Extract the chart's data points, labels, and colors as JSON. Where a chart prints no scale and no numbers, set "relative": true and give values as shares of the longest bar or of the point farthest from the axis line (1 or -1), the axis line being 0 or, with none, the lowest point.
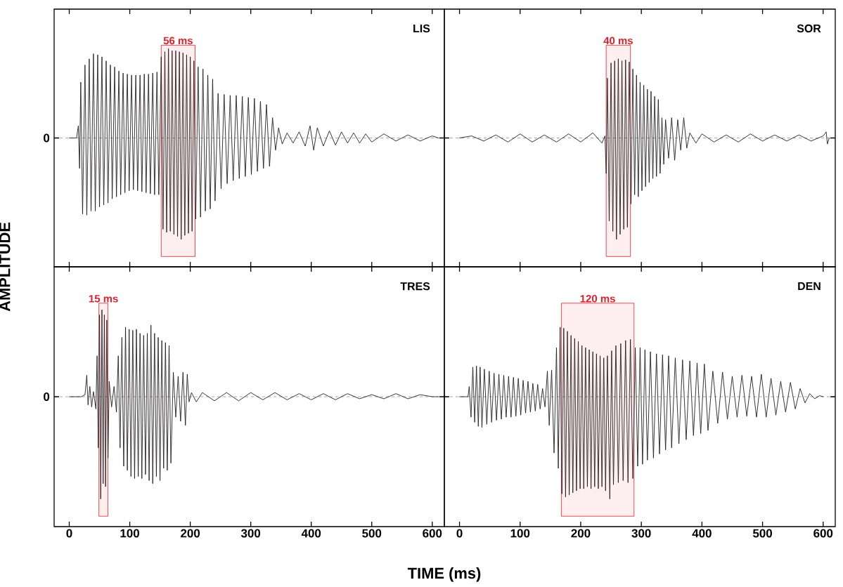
{
  "chart_data": [
    {
      "type": "line",
      "title": "LIS",
      "ylabel": "AMPLITUDE",
      "relative": true,
      "color": "#231f20",
      "xlim": [
        -25,
        620
      ],
      "xticks": [
        0,
        100,
        200,
        300,
        400,
        500,
        600
      ],
      "tick_labels": false,
      "ref_lines": [
        {
          "axis": "y",
          "value": 0,
          "label": "0",
          "line_style": "dashed"
        }
      ],
      "bands": [
        {
          "axis": "x",
          "from": 152,
          "to": 208,
          "label": "56 ms",
          "color": "#e0202a"
        }
      ],
      "x": [
        0,
        12,
        15,
        17,
        19,
        22,
        26,
        29,
        33,
        36,
        40,
        43,
        47,
        50,
        54,
        57,
        61,
        64,
        68,
        71,
        75,
        78,
        82,
        85,
        89,
        92,
        96,
        99,
        103,
        106,
        110,
        113,
        117,
        120,
        124,
        127,
        131,
        134,
        138,
        141,
        145,
        148,
        152,
        155,
        158,
        161,
        164,
        167,
        170,
        173,
        176,
        179,
        182,
        185,
        188,
        191,
        194,
        197,
        200,
        203,
        206,
        209,
        213,
        217,
        221,
        225,
        229,
        233,
        237,
        241,
        246,
        251,
        256,
        261,
        266,
        271,
        276,
        281,
        286,
        291,
        296,
        301,
        306,
        311,
        316,
        321,
        326,
        331,
        336,
        341,
        346,
        352,
        360,
        370,
        380,
        390,
        398,
        404,
        410,
        420,
        430,
        440,
        450,
        460,
        470,
        480,
        490,
        500,
        520,
        540,
        560,
        580,
        600,
        610
      ],
      "values": [
        0,
        0,
        0.12,
        -0.3,
        0.55,
        -0.75,
        0.72,
        -0.76,
        0.78,
        -0.72,
        0.83,
        -0.72,
        0.82,
        -0.68,
        0.8,
        -0.66,
        0.76,
        -0.64,
        0.72,
        -0.6,
        0.7,
        -0.58,
        0.66,
        -0.56,
        0.64,
        -0.54,
        0.63,
        -0.52,
        0.62,
        -0.51,
        0.62,
        -0.52,
        0.62,
        -0.53,
        0.63,
        -0.54,
        0.63,
        -0.55,
        0.64,
        -0.56,
        0.65,
        -0.56,
        0.8,
        -0.9,
        0.85,
        -0.93,
        0.88,
        -0.92,
        0.86,
        -0.95,
        0.86,
        -0.97,
        0.85,
        -1,
        0.84,
        -0.96,
        0.82,
        -0.94,
        0.8,
        -0.92,
        0.76,
        -0.8,
        0.7,
        -0.78,
        0.68,
        -0.72,
        0.62,
        -0.7,
        0.58,
        -0.62,
        0.44,
        -0.5,
        0.43,
        -0.45,
        0.42,
        -0.42,
        0.42,
        -0.4,
        0.41,
        -0.38,
        0.4,
        -0.36,
        0.39,
        -0.33,
        0.36,
        -0.3,
        0.33,
        -0.28,
        0.2,
        -0.12,
        0.1,
        -0.06,
        0.05,
        -0.05,
        0.06,
        -0.08,
        0.12,
        -0.12,
        0.1,
        -0.08,
        0.07,
        -0.07,
        0.06,
        -0.05,
        0.05,
        -0.05,
        0.04,
        -0.04,
        0.04,
        -0.03,
        0.03,
        -0.03,
        0.02,
        0
      ]
    },
    {
      "type": "line",
      "title": "SOR",
      "relative": true,
      "color": "#231f20",
      "xlim": [
        -25,
        620
      ],
      "xticks": [
        0,
        100,
        200,
        300,
        400,
        500,
        600
      ],
      "tick_labels": false,
      "ref_lines": [
        {
          "axis": "y",
          "value": 0,
          "line_style": "dashed"
        }
      ],
      "bands": [
        {
          "axis": "x",
          "from": 242,
          "to": 282,
          "label": "40 ms",
          "color": "#e0202a"
        }
      ],
      "x": [
        0,
        20,
        40,
        60,
        80,
        100,
        120,
        140,
        160,
        180,
        200,
        220,
        235,
        240,
        242,
        244,
        247,
        250,
        253,
        256,
        259,
        262,
        265,
        268,
        271,
        274,
        277,
        280,
        283,
        286,
        289,
        292,
        295,
        298,
        301,
        304,
        307,
        310,
        313,
        316,
        319,
        322,
        325,
        328,
        331,
        334,
        337,
        340,
        345,
        350,
        355,
        360,
        365,
        370,
        375,
        380,
        390,
        400,
        420,
        440,
        460,
        480,
        500,
        520,
        540,
        560,
        580,
        600,
        605,
        607,
        610
      ],
      "values": [
        0,
        0.02,
        -0.03,
        0.03,
        -0.04,
        0.04,
        -0.04,
        0.03,
        -0.04,
        0.04,
        -0.04,
        0.05,
        -0.05,
        0.02,
        -0.35,
        0.59,
        -0.82,
        0.74,
        -0.92,
        0.76,
        -1,
        0.78,
        -0.95,
        0.76,
        -0.9,
        0.77,
        -0.88,
        0.75,
        -0.65,
        0.68,
        -0.56,
        0.62,
        -0.58,
        0.55,
        -0.52,
        0.52,
        -0.48,
        0.48,
        -0.44,
        0.46,
        -0.4,
        0.41,
        -0.38,
        0.38,
        -0.35,
        0.2,
        -0.26,
        0.18,
        -0.2,
        0.2,
        -0.22,
        0.18,
        -0.12,
        0.2,
        -0.1,
        0.05,
        -0.05,
        0.04,
        -0.04,
        0.03,
        -0.04,
        0.04,
        -0.03,
        0.03,
        -0.03,
        0.03,
        -0.03,
        0.02,
        0.06,
        -0.06,
        0
      ]
    },
    {
      "type": "line",
      "title": "TRES",
      "xlabel": "TIME (ms)",
      "relative": true,
      "color": "#231f20",
      "xlim": [
        -25,
        620
      ],
      "xticks": [
        0,
        100,
        200,
        300,
        400,
        500,
        600
      ],
      "ref_lines": [
        {
          "axis": "y",
          "value": 0,
          "label": "0",
          "line_style": "dashed"
        }
      ],
      "bands": [
        {
          "axis": "x",
          "from": 49,
          "to": 64,
          "label": "15 ms",
          "color": "#e0202a"
        }
      ],
      "x": [
        0,
        20,
        26,
        29,
        31,
        34,
        37,
        40,
        44,
        46,
        48,
        50,
        52,
        54,
        56,
        58,
        60,
        62,
        64,
        66,
        70,
        74,
        78,
        81,
        84,
        87,
        90,
        93,
        96,
        99,
        102,
        105,
        108,
        111,
        114,
        117,
        120,
        123,
        126,
        129,
        132,
        135,
        138,
        141,
        144,
        147,
        150,
        153,
        156,
        159,
        162,
        165,
        168,
        172,
        176,
        180,
        184,
        188,
        192,
        195,
        198,
        202,
        210,
        220,
        240,
        260,
        280,
        300,
        320,
        340,
        360,
        380,
        400,
        420,
        440,
        460,
        480,
        500,
        520,
        540,
        560,
        580,
        600,
        610
      ],
      "values": [
        0,
        0,
        0.02,
        0.21,
        -0.08,
        0.1,
        -0.1,
        0.05,
        -0.12,
        0.4,
        -0.5,
        0.8,
        -1,
        0.85,
        -0.85,
        0.8,
        -0.88,
        0.75,
        -0.6,
        0.15,
        -0.1,
        0.1,
        -0.15,
        0.4,
        -0.5,
        0.58,
        -0.68,
        0.68,
        -0.72,
        0.66,
        -0.78,
        0.65,
        -0.8,
        0.66,
        -0.78,
        0.62,
        -0.8,
        0.6,
        -0.76,
        0.62,
        -0.82,
        0.7,
        -0.85,
        0.62,
        -0.78,
        0.58,
        -0.82,
        0.55,
        -0.7,
        0.53,
        -0.72,
        0.5,
        -0.65,
        0.24,
        -0.2,
        0.2,
        -0.24,
        0.24,
        -0.28,
        0.22,
        -0.05,
        0.04,
        -0.05,
        0.04,
        -0.04,
        0.04,
        -0.04,
        0.04,
        -0.03,
        0.04,
        -0.03,
        0.03,
        -0.03,
        0.03,
        -0.03,
        0.03,
        -0.02,
        0.02,
        -0.02,
        0.03,
        -0.02,
        0.02,
        0,
        0
      ]
    },
    {
      "type": "line",
      "title": "DEN",
      "relative": true,
      "color": "#231f20",
      "xlim": [
        -25,
        620
      ],
      "xticks": [
        0,
        100,
        200,
        300,
        400,
        500,
        600
      ],
      "tick_labels": "x",
      "ref_lines": [
        {
          "axis": "y",
          "value": 0,
          "line_style": "dashed"
        }
      ],
      "bands": [
        {
          "axis": "x",
          "from": 168,
          "to": 288,
          "label": "120 ms",
          "color": "#e0202a"
        }
      ],
      "x": [
        0,
        14,
        16,
        19,
        22,
        25,
        28,
        31,
        34,
        37,
        41,
        45,
        49,
        53,
        57,
        61,
        65,
        69,
        73,
        77,
        81,
        85,
        89,
        93,
        97,
        101,
        105,
        109,
        113,
        117,
        121,
        125,
        129,
        133,
        137,
        141,
        145,
        148,
        152,
        156,
        160,
        163,
        166,
        169,
        172,
        175,
        178,
        181,
        184,
        187,
        190,
        193,
        196,
        199,
        202,
        205,
        208,
        211,
        214,
        217,
        220,
        223,
        226,
        229,
        232,
        235,
        238,
        241,
        244,
        248,
        251,
        254,
        258,
        262,
        266,
        270,
        274,
        278,
        282,
        286,
        290,
        294,
        298,
        302,
        306,
        310,
        315,
        320,
        325,
        330,
        335,
        340,
        345,
        350,
        356,
        362,
        368,
        374,
        380,
        386,
        392,
        398,
        404,
        410,
        418,
        426,
        434,
        442,
        450,
        458,
        466,
        474,
        482,
        490,
        498,
        506,
        514,
        522,
        530,
        538,
        546,
        554,
        562,
        570,
        578,
        586,
        594,
        600
      ],
      "values": [
        0,
        0,
        0.1,
        -0.2,
        0.29,
        -0.25,
        0.3,
        -0.29,
        0.29,
        -0.3,
        0.27,
        -0.27,
        0.25,
        -0.25,
        0.23,
        -0.23,
        0.22,
        -0.22,
        0.21,
        -0.2,
        0.2,
        -0.2,
        0.19,
        -0.19,
        0.18,
        -0.18,
        0.16,
        -0.16,
        0.15,
        -0.15,
        0.13,
        -0.14,
        0.12,
        -0.12,
        0.08,
        -0.1,
        0.25,
        -0.28,
        0.26,
        -0.55,
        0.48,
        -0.7,
        0.68,
        -0.95,
        0.67,
        -0.98,
        0.64,
        -0.96,
        0.6,
        -0.94,
        0.57,
        -0.92,
        0.54,
        -0.9,
        0.5,
        -0.9,
        0.48,
        -0.88,
        0.46,
        -0.9,
        0.44,
        -0.88,
        0.42,
        -0.9,
        0.4,
        -0.88,
        0.38,
        -0.92,
        0.4,
        -1,
        0.45,
        -0.86,
        0.5,
        -0.84,
        0.52,
        -0.82,
        0.55,
        -0.84,
        0.56,
        -0.8,
        0.48,
        -0.68,
        0.48,
        -0.66,
        0.46,
        -0.62,
        0.44,
        -0.6,
        0.42,
        -0.56,
        0.41,
        -0.52,
        0.4,
        -0.5,
        0.38,
        -0.46,
        0.36,
        -0.42,
        0.35,
        -0.38,
        0.33,
        -0.36,
        0.32,
        -0.33,
        0.25,
        -0.26,
        0.24,
        -0.22,
        0.2,
        -0.2,
        0.21,
        -0.19,
        0.2,
        -0.2,
        0.22,
        -0.2,
        0.18,
        -0.18,
        0.15,
        -0.15,
        0.14,
        -0.12,
        0.08,
        -0.06,
        0.03,
        -0.02,
        0.01,
        0
      ]
    }
  ]
}
